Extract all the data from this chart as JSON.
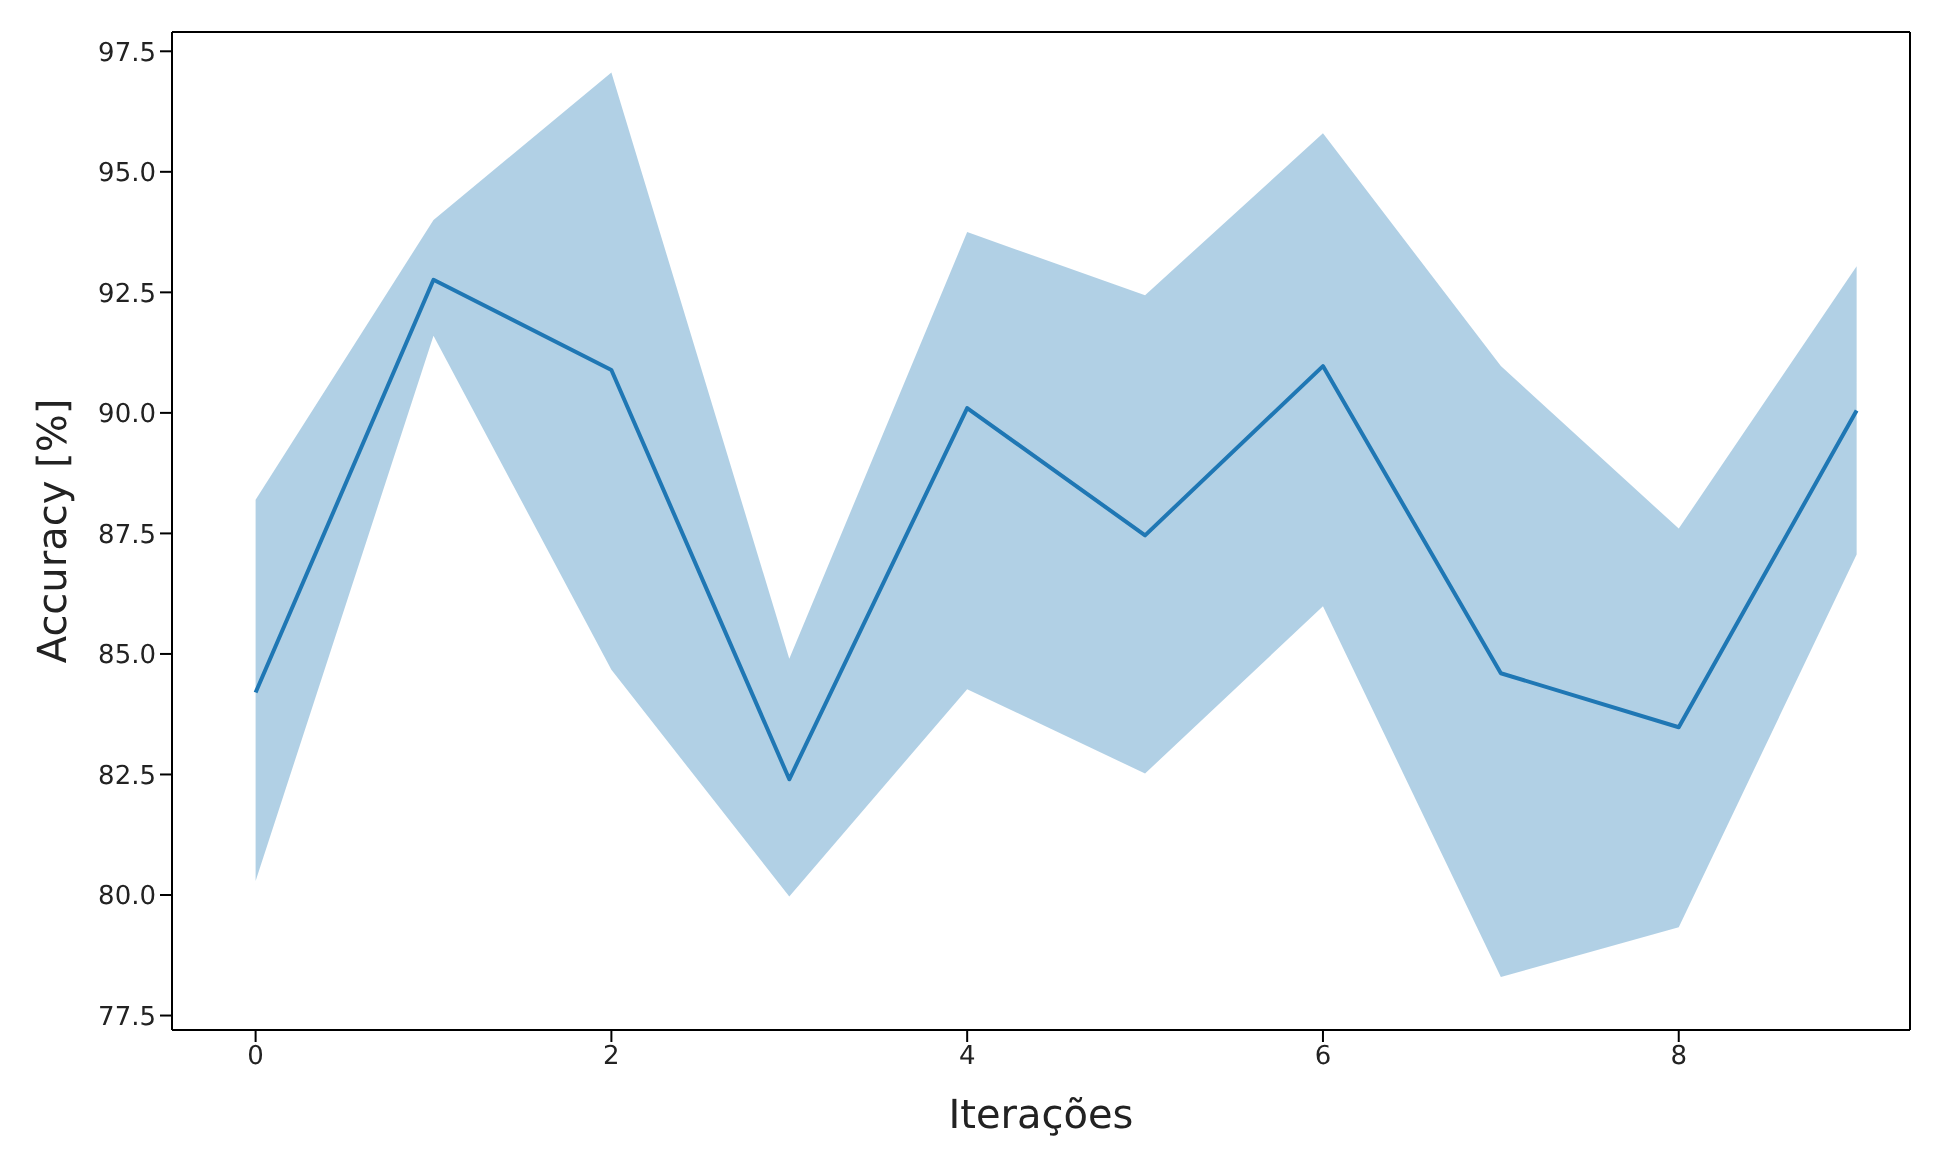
{
  "chart_data": {
    "type": "line",
    "xlabel": "Iterações",
    "ylabel": "Accuracy [%]",
    "x": [
      0,
      1,
      2,
      3,
      4,
      5,
      6,
      7,
      8,
      9
    ],
    "series": [
      {
        "color": "#1f77b4",
        "values": [
          84.2,
          92.76,
          90.89,
          82.4,
          90.1,
          87.46,
          90.97,
          84.6,
          83.48,
          90.05
        ],
        "lower": [
          80.29,
          91.6,
          84.67,
          79.97,
          84.27,
          82.52,
          85.99,
          78.3,
          79.33,
          87.06
        ],
        "upper": [
          88.2,
          94.0,
          97.06,
          84.9,
          93.75,
          92.44,
          95.8,
          90.97,
          87.6,
          93.04
        ]
      }
    ],
    "xlim": [
      -0.47,
      9.3
    ],
    "ylim": [
      77.2,
      97.9
    ],
    "xticks": [
      0,
      2,
      4,
      6,
      8
    ],
    "yticks": [
      {
        "value": 77.5,
        "label": "77.5"
      },
      {
        "value": 80,
        "label": "80.0"
      },
      {
        "value": 82.5,
        "label": "82.5"
      },
      {
        "value": 85,
        "label": "85.0"
      },
      {
        "value": 87.5,
        "label": "87.5"
      },
      {
        "value": 90,
        "label": "90.0"
      },
      {
        "value": 92.5,
        "label": "92.5"
      },
      {
        "value": 95,
        "label": "95.0"
      },
      {
        "value": 97.5,
        "label": "97.5"
      }
    ],
    "grid": false,
    "legend": false,
    "marker": "none",
    "line_style": "solid"
  }
}
